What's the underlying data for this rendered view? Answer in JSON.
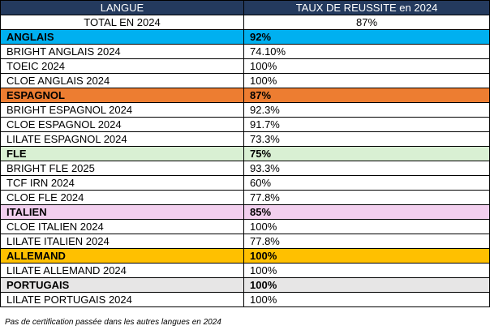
{
  "header": {
    "col_language": "LANGUE",
    "col_rate": "TAUX DE REUSSITE en 2024"
  },
  "total": {
    "label": "TOTAL EN 2024",
    "value": "87%"
  },
  "groups": [
    {
      "name": "ANGLAIS",
      "rate": "92%",
      "color": "#00b0f0",
      "items": [
        {
          "label": "BRIGHT ANGLAIS 2024",
          "value": "74.10%"
        },
        {
          "label": "TOEIC 2024",
          "value": "100%"
        },
        {
          "label": "CLOE ANGLAIS 2024",
          "value": "100%"
        }
      ]
    },
    {
      "name": "ESPAGNOL",
      "rate": "87%",
      "color": "#ed7d31",
      "items": [
        {
          "label": "BRIGHT ESPAGNOL 2024",
          "value": "92.3%"
        },
        {
          "label": "CLOE ESPAGNOL 2024",
          "value": "91.7%"
        },
        {
          "label": "LILATE ESPAGNOL 2024",
          "value": "73.3%"
        }
      ]
    },
    {
      "name": "FLE",
      "rate": "75%",
      "color": "#d9f0d3",
      "items": [
        {
          "label": "BRIGHT FLE 2025",
          "value": "93.3%"
        },
        {
          "label": "TCF IRN 2024",
          "value": "60%"
        },
        {
          "label": "CLOE FLE 2024",
          "value": "77.8%"
        }
      ]
    },
    {
      "name": "ITALIEN",
      "rate": "85%",
      "color": "#f2cfee",
      "items": [
        {
          "label": "CLOE ITALIEN 2024",
          "value": "100%"
        },
        {
          "label": "LILATE ITALIEN 2024",
          "value": "77.8%"
        }
      ]
    },
    {
      "name": "ALLEMAND",
      "rate": "100%",
      "color": "#ffc000",
      "items": [
        {
          "label": "LILATE ALLEMAND 2024",
          "value": "100%"
        }
      ]
    },
    {
      "name": "PORTUGAIS",
      "rate": "100%",
      "color": "#e7e6e6",
      "items": [
        {
          "label": "LILATE PORTUGAIS 2024",
          "value": "100%"
        }
      ]
    }
  ],
  "footnote": "Pas de certification passée dans les autres langues en 2024"
}
